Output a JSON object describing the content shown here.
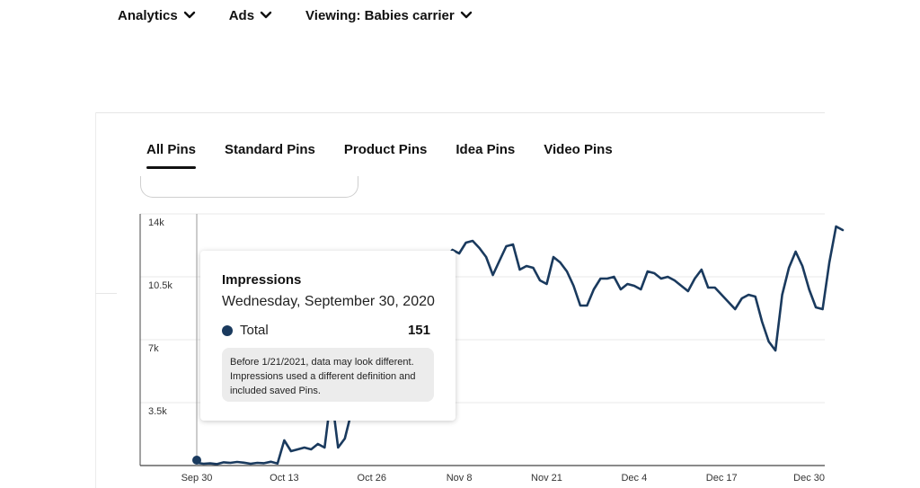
{
  "nav": {
    "items": [
      {
        "label": "Analytics"
      },
      {
        "label": "Ads"
      },
      {
        "label": "Viewing: Babies carrier"
      }
    ]
  },
  "tabs": [
    {
      "label": "All Pins",
      "active": true
    },
    {
      "label": "Standard Pins",
      "active": false
    },
    {
      "label": "Product Pins",
      "active": false
    },
    {
      "label": "Idea Pins",
      "active": false
    },
    {
      "label": "Video Pins",
      "active": false
    }
  ],
  "tooltip": {
    "title": "Impressions",
    "date": "Wednesday, September 30, 2020",
    "series_label": "Total",
    "value": "151",
    "note": "Before 1/21/2021, data may look different. Impressions used a different definition and included saved Pins."
  },
  "colors": {
    "line": "#1a3a5e",
    "grid": "#e9e9e9",
    "axis": "#444444"
  },
  "chart_data": {
    "type": "line",
    "title": "",
    "xlabel": "",
    "ylabel": "",
    "ylim": [
      0,
      14000
    ],
    "yticks": [
      {
        "label": "3.5k",
        "value": 3500
      },
      {
        "label": "7k",
        "value": 7000
      },
      {
        "label": "10.5k",
        "value": 10500
      },
      {
        "label": "14k",
        "value": 14000
      }
    ],
    "xlim": [
      0,
      99
    ],
    "xticks": [
      {
        "label": "Sep 30",
        "day": 0
      },
      {
        "label": "Oct 13",
        "day": 13
      },
      {
        "label": "Oct 26",
        "day": 26
      },
      {
        "label": "Nov 8",
        "day": 39
      },
      {
        "label": "Nov 21",
        "day": 52
      },
      {
        "label": "Dec 4",
        "day": 65
      },
      {
        "label": "Dec 17",
        "day": 78
      },
      {
        "label": "Dec 30",
        "day": 91
      }
    ],
    "series": [
      {
        "points": [
          [
            0,
            151
          ],
          [
            1,
            100
          ],
          [
            2,
            120
          ],
          [
            3,
            80
          ],
          [
            4,
            180
          ],
          [
            5,
            150
          ],
          [
            6,
            200
          ],
          [
            7,
            160
          ],
          [
            8,
            100
          ],
          [
            9,
            150
          ],
          [
            10,
            130
          ],
          [
            11,
            210
          ],
          [
            12,
            110
          ],
          [
            13,
            1400
          ],
          [
            14,
            800
          ],
          [
            15,
            900
          ],
          [
            16,
            1000
          ],
          [
            17,
            900
          ],
          [
            18,
            1200
          ],
          [
            19,
            1000
          ],
          [
            20,
            4000
          ],
          [
            21,
            1000
          ],
          [
            22,
            1500
          ],
          [
            23,
            3000
          ],
          [
            24,
            4000
          ],
          [
            25,
            5000
          ],
          [
            26,
            6500
          ],
          [
            27,
            7500
          ],
          [
            28,
            8000
          ],
          [
            29,
            7800
          ],
          [
            30,
            8500
          ],
          [
            31,
            9000
          ],
          [
            32,
            9200
          ],
          [
            33,
            9500
          ],
          [
            34,
            9800
          ],
          [
            35,
            10200
          ],
          [
            36,
            10800
          ],
          [
            37,
            11500
          ],
          [
            38,
            12000
          ],
          [
            39,
            11800
          ],
          [
            40,
            12400
          ],
          [
            41,
            12500
          ],
          [
            42,
            12100
          ],
          [
            43,
            11600
          ],
          [
            44,
            10600
          ],
          [
            45,
            11400
          ],
          [
            46,
            12200
          ],
          [
            47,
            12300
          ],
          [
            48,
            10900
          ],
          [
            49,
            11100
          ],
          [
            50,
            11000
          ],
          [
            51,
            10300
          ],
          [
            52,
            10100
          ],
          [
            53,
            11600
          ],
          [
            54,
            11300
          ],
          [
            55,
            10800
          ],
          [
            56,
            10000
          ],
          [
            57,
            8900
          ],
          [
            58,
            8900
          ],
          [
            59,
            9800
          ],
          [
            60,
            10400
          ],
          [
            61,
            10400
          ],
          [
            62,
            10500
          ],
          [
            63,
            9800
          ],
          [
            64,
            10100
          ],
          [
            65,
            10000
          ],
          [
            66,
            9800
          ],
          [
            67,
            10800
          ],
          [
            68,
            10700
          ],
          [
            69,
            10400
          ],
          [
            70,
            10500
          ],
          [
            71,
            10300
          ],
          [
            72,
            10000
          ],
          [
            73,
            9700
          ],
          [
            74,
            10400
          ],
          [
            75,
            10900
          ],
          [
            76,
            9900
          ],
          [
            77,
            9900
          ],
          [
            78,
            9500
          ],
          [
            79,
            9100
          ],
          [
            80,
            8700
          ],
          [
            81,
            9300
          ],
          [
            82,
            9500
          ],
          [
            83,
            9400
          ],
          [
            84,
            8000
          ],
          [
            85,
            6900
          ],
          [
            86,
            6400
          ],
          [
            87,
            9500
          ],
          [
            88,
            11000
          ],
          [
            89,
            11900
          ],
          [
            90,
            11100
          ],
          [
            91,
            9800
          ],
          [
            92,
            8800
          ],
          [
            93,
            8700
          ],
          [
            94,
            11300
          ],
          [
            95,
            13300
          ],
          [
            96,
            13100
          ]
        ]
      }
    ],
    "highlight": {
      "day": 0,
      "value": 151
    }
  }
}
